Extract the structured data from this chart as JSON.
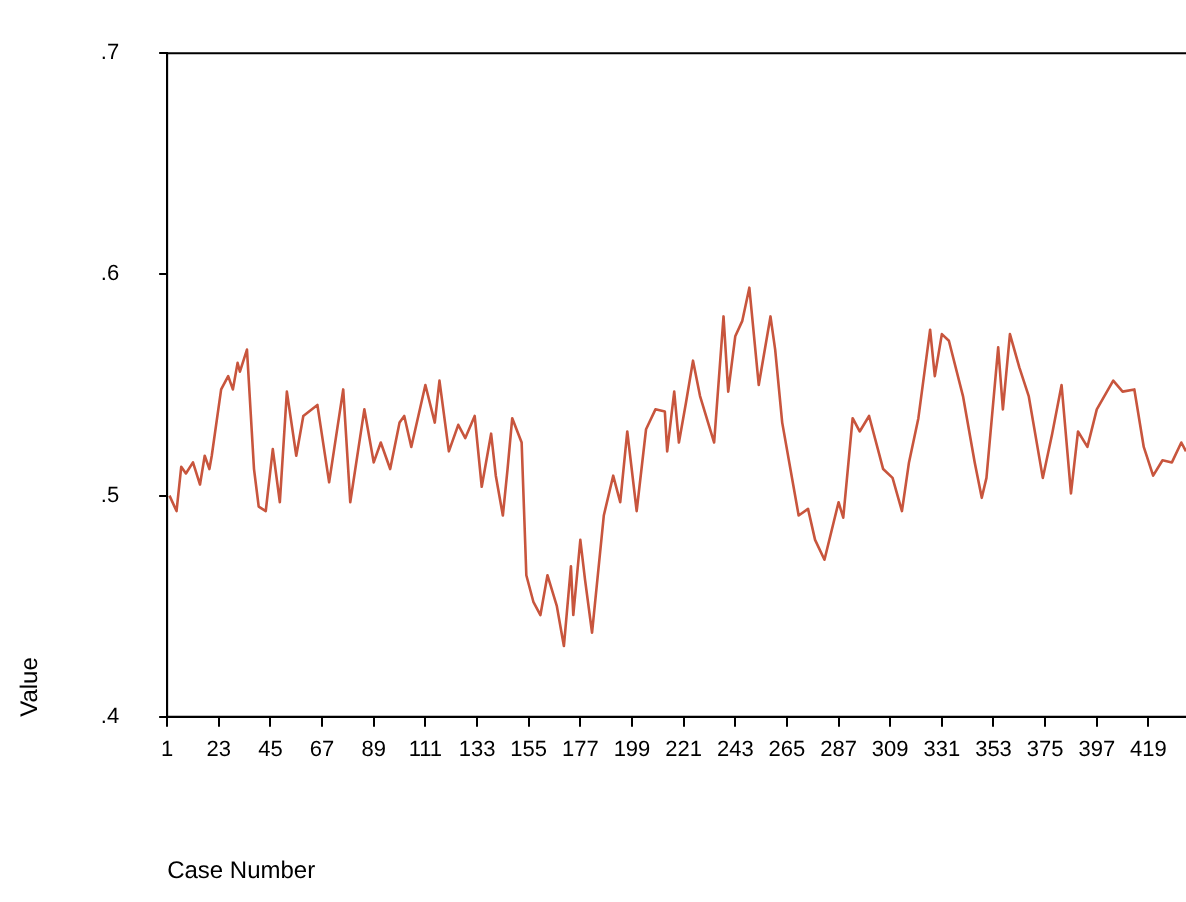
{
  "chart_data": {
    "type": "line",
    "xlabel": "Case Number",
    "ylabel": "Value",
    "xlim": [
      1,
      435
    ],
    "xticks": [
      1,
      23,
      45,
      67,
      89,
      111,
      133,
      155,
      177,
      199,
      221,
      243,
      265,
      287,
      309,
      331,
      353,
      375,
      397,
      419
    ],
    "ylim": [
      0.4,
      0.7
    ],
    "yticks": [
      {
        "value": 0.4,
        "label": ".4"
      },
      {
        "value": 0.5,
        "label": ".5"
      },
      {
        "value": 0.6,
        "label": ".6"
      },
      {
        "value": 0.7,
        "label": ".7"
      }
    ],
    "grid": false,
    "legend": false,
    "marker": "none",
    "line_style": "solid",
    "series": [
      {
        "color": "#c8553d",
        "x": [
          2,
          5,
          7,
          9,
          12,
          15,
          17,
          19,
          20,
          24,
          27,
          29,
          31,
          32,
          35,
          38,
          40,
          43,
          46,
          49,
          52,
          56,
          59,
          65,
          70,
          76,
          79,
          85,
          89,
          92,
          96,
          100,
          102,
          105,
          111,
          115,
          117,
          121,
          125,
          128,
          132,
          135,
          139,
          141,
          144,
          146,
          148,
          152,
          154,
          157,
          160,
          163,
          167,
          170,
          173,
          174,
          177,
          179,
          182,
          187,
          191,
          194,
          197,
          201,
          205,
          209,
          213,
          214,
          217,
          219,
          222,
          225,
          228,
          234,
          238,
          240,
          243,
          246,
          249,
          253,
          258,
          260,
          263,
          267,
          270,
          274,
          277,
          281,
          287,
          289,
          293,
          296,
          300,
          306,
          310,
          314,
          317,
          321,
          326,
          328,
          331,
          334,
          340,
          345,
          348,
          350,
          355,
          357,
          360,
          364,
          368,
          374,
          378,
          382,
          386,
          389,
          393,
          397,
          404,
          408,
          413,
          417,
          421,
          425,
          429,
          433,
          435
        ],
        "values": [
          0.5,
          0.493,
          0.513,
          0.51,
          0.515,
          0.505,
          0.518,
          0.512,
          0.518,
          0.548,
          0.554,
          0.548,
          0.56,
          0.556,
          0.566,
          0.512,
          0.495,
          0.493,
          0.521,
          0.497,
          0.547,
          0.518,
          0.536,
          0.541,
          0.506,
          0.548,
          0.497,
          0.539,
          0.515,
          0.524,
          0.512,
          0.533,
          0.536,
          0.522,
          0.55,
          0.533,
          0.552,
          0.52,
          0.532,
          0.526,
          0.536,
          0.504,
          0.528,
          0.509,
          0.491,
          0.512,
          0.535,
          0.524,
          0.464,
          0.452,
          0.446,
          0.464,
          0.45,
          0.432,
          0.468,
          0.446,
          0.48,
          0.462,
          0.438,
          0.491,
          0.509,
          0.497,
          0.529,
          0.493,
          0.53,
          0.539,
          0.538,
          0.52,
          0.547,
          0.524,
          0.542,
          0.561,
          0.545,
          0.524,
          0.581,
          0.547,
          0.572,
          0.579,
          0.594,
          0.55,
          0.581,
          0.566,
          0.533,
          0.509,
          0.491,
          0.494,
          0.48,
          0.471,
          0.497,
          0.49,
          0.535,
          0.529,
          0.536,
          0.512,
          0.508,
          0.493,
          0.515,
          0.535,
          0.575,
          0.554,
          0.573,
          0.57,
          0.545,
          0.515,
          0.499,
          0.508,
          0.567,
          0.539,
          0.573,
          0.558,
          0.545,
          0.508,
          0.528,
          0.55,
          0.501,
          0.529,
          0.522,
          0.539,
          0.552,
          0.547,
          0.548,
          0.522,
          0.509,
          0.516,
          0.515,
          0.524,
          0.52
        ]
      }
    ]
  }
}
